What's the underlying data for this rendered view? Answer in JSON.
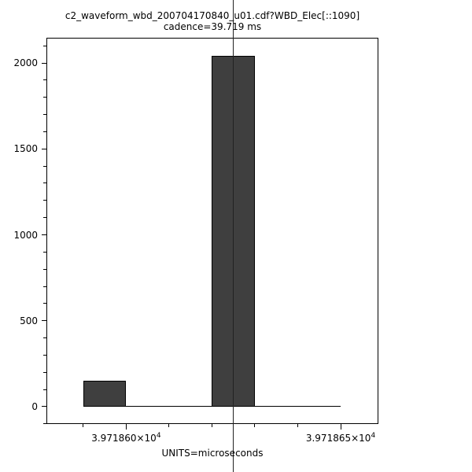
{
  "title": {
    "line1": "c2_waveform_wbd_200704170840_u01.cdf?WBD_Elec[::1090]",
    "line2": "cadence=39.719 ms"
  },
  "chart_data": {
    "type": "bar",
    "subtype": "histogram",
    "title": "c2_waveform_wbd_200704170840_u01.cdf?WBD_Elec[::1090]",
    "subtitle": "cadence=39.719 ms",
    "xlabel": "UNITS=microseconds",
    "ylabel": "",
    "bin_edges": [
      39718.59,
      39718.6,
      39718.61,
      39718.62,
      39718.63,
      39718.64,
      39718.65
    ],
    "counts": [
      150,
      0,
      0,
      2040,
      0,
      0
    ],
    "xlim": [
      39718.5814,
      39718.6588
    ],
    "ylim": [
      -101,
      2147
    ],
    "x_major_ticks": [
      {
        "value": 39718.6,
        "label_base": "3.971860×10",
        "label_exp": "4"
      },
      {
        "value": 39718.65,
        "label_base": "3.971865×10",
        "label_exp": "4"
      }
    ],
    "x_minor_ticks": [
      39718.59,
      39718.61,
      39718.62,
      39718.63,
      39718.64
    ],
    "y_major_ticks": [
      {
        "value": 0,
        "label": "0"
      },
      {
        "value": 500,
        "label": "500"
      },
      {
        "value": 1000,
        "label": "1000"
      },
      {
        "value": 1500,
        "label": "1500"
      },
      {
        "value": 2000,
        "label": "2000"
      }
    ],
    "y_minor_step": 100,
    "cursor_line_x": 39718.625,
    "grid": false,
    "legend_position": "none",
    "colors": {
      "bar_fill": "#3f3f3f",
      "bar_edge": "#000000",
      "axis": "#000000",
      "cursor_line": "#222222",
      "background": "#ffffff"
    }
  }
}
